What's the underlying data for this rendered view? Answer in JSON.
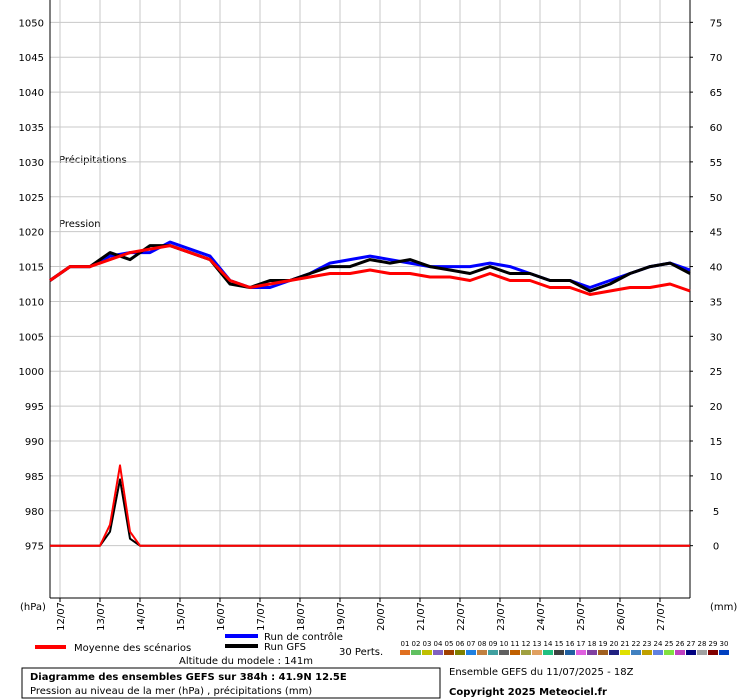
{
  "chart_data": {
    "type": "line",
    "annotations": [
      "Précipitations",
      "Pression"
    ],
    "ylabel": "(hPa)",
    "y2label": "(mm)",
    "x": [
      0,
      12,
      24,
      36,
      48,
      60,
      72,
      84,
      96,
      108,
      120,
      132,
      144,
      156,
      168,
      180,
      192,
      204,
      216,
      228,
      240,
      252,
      264,
      276,
      288,
      300,
      312,
      324,
      336,
      348,
      360,
      372,
      384
    ],
    "xlim": [
      0,
      384
    ],
    "xticks": [
      {
        "value": 6,
        "label": "12/07"
      },
      {
        "value": 30,
        "label": "13/07"
      },
      {
        "value": 54,
        "label": "14/07"
      },
      {
        "value": 78,
        "label": "15/07"
      },
      {
        "value": 102,
        "label": "16/07"
      },
      {
        "value": 126,
        "label": "17/07"
      },
      {
        "value": 150,
        "label": "18/07"
      },
      {
        "value": 174,
        "label": "19/07"
      },
      {
        "value": 198,
        "label": "20/07"
      },
      {
        "value": 222,
        "label": "21/07"
      },
      {
        "value": 246,
        "label": "22/07"
      },
      {
        "value": 270,
        "label": "23/07"
      },
      {
        "value": 294,
        "label": "24/07"
      },
      {
        "value": 318,
        "label": "25/07"
      },
      {
        "value": 342,
        "label": "26/07"
      },
      {
        "value": 366,
        "label": "27/07"
      }
    ],
    "ylim": [
      967.5,
      1053.2
    ],
    "yticks": [
      975,
      980,
      985,
      990,
      995,
      1000,
      1005,
      1010,
      1015,
      1020,
      1025,
      1030,
      1035,
      1040,
      1045,
      1050
    ],
    "y2lim": [
      -7.5,
      78.2
    ],
    "y2ticks": [
      0,
      5,
      10,
      15,
      20,
      25,
      30,
      35,
      40,
      45,
      50,
      55,
      60,
      65,
      70,
      75
    ],
    "grid": true,
    "series": [
      {
        "name": "Run de contrôle",
        "color": "#0000ff",
        "values": [
          1013,
          1015,
          1015,
          1016.5,
          1017,
          1017,
          1018.5,
          1017.5,
          1016.5,
          1013,
          1012,
          1012,
          1013,
          1014,
          1015.5,
          1016,
          1016.5,
          1016,
          1015.5,
          1015,
          1015,
          1015,
          1015.5,
          1015,
          1014,
          1013,
          1013,
          1012,
          1013,
          1014,
          1015,
          1015.5,
          1014.5
        ]
      },
      {
        "name": "Run GFS",
        "color": "#000000",
        "values": [
          1013,
          1015,
          1015,
          1017,
          1016,
          1018,
          1018,
          1017,
          1016,
          1012.5,
          1012,
          1013,
          1013,
          1014,
          1015,
          1015,
          1016,
          1015.5,
          1016,
          1015,
          1014.5,
          1014,
          1015,
          1014,
          1014,
          1013,
          1013,
          1011.5,
          1012.5,
          1014,
          1015,
          1015.5,
          1014
        ]
      },
      {
        "name": "Moyenne des scénarios",
        "color": "#ff0000",
        "values": [
          1013,
          1015,
          1015,
          1016,
          1017,
          1017.5,
          1018,
          1017,
          1016,
          1013,
          1012,
          1012.5,
          1013,
          1013.5,
          1014,
          1014,
          1014.5,
          1014,
          1014,
          1013.5,
          1013.5,
          1013,
          1014,
          1013,
          1013,
          1012,
          1012,
          1011,
          1011.5,
          1012,
          1012,
          1012.5,
          1011.5
        ]
      },
      {
        "axis": "y2",
        "color": "#000000",
        "x": [
          0,
          30,
          36,
          42,
          48,
          54,
          384
        ],
        "values": [
          0,
          0,
          2,
          9.5,
          1,
          0,
          0
        ]
      },
      {
        "axis": "y2",
        "color": "#ff0000",
        "x": [
          0,
          30,
          36,
          42,
          48,
          54,
          384
        ],
        "values": [
          0,
          0,
          3,
          11.5,
          2,
          0,
          0
        ]
      }
    ],
    "perturbations_label": "30 Perts.",
    "perturbations": [
      {
        "label": "01",
        "color": "#e07020"
      },
      {
        "label": "02",
        "color": "#60c060"
      },
      {
        "label": "03",
        "color": "#c0c000"
      },
      {
        "label": "04",
        "color": "#8060c0"
      },
      {
        "label": "05",
        "color": "#a04000"
      },
      {
        "label": "06",
        "color": "#808000"
      },
      {
        "label": "07",
        "color": "#2080e0"
      },
      {
        "label": "08",
        "color": "#c08040"
      },
      {
        "label": "09",
        "color": "#40a0a0"
      },
      {
        "label": "10",
        "color": "#606060"
      },
      {
        "label": "11",
        "color": "#c06000"
      },
      {
        "label": "12",
        "color": "#a0a040"
      },
      {
        "label": "13",
        "color": "#e0a060"
      },
      {
        "label": "14",
        "color": "#20c080"
      },
      {
        "label": "15",
        "color": "#404040"
      },
      {
        "label": "16",
        "color": "#2060a0"
      },
      {
        "label": "17",
        "color": "#e060e0"
      },
      {
        "label": "18",
        "color": "#8040a0"
      },
      {
        "label": "19",
        "color": "#a06020"
      },
      {
        "label": "20",
        "color": "#202080"
      },
      {
        "label": "21",
        "color": "#e0e000"
      },
      {
        "label": "22",
        "color": "#4080c0"
      },
      {
        "label": "23",
        "color": "#c0a000"
      },
      {
        "label": "24",
        "color": "#6080e0"
      },
      {
        "label": "25",
        "color": "#80e040"
      },
      {
        "label": "26",
        "color": "#c040c0"
      },
      {
        "label": "27",
        "color": "#000080"
      },
      {
        "label": "28",
        "color": "#a0a0a0"
      },
      {
        "label": "29",
        "color": "#800000"
      },
      {
        "label": "30",
        "color": "#0040c0"
      }
    ],
    "altitude": "Altitude du modele : 141m",
    "title": "Diagramme des ensembles GEFS sur 384h : 41.9N 12.5E",
    "subtitle": "Pression au niveau de la mer (hPa) , précipitations (mm)",
    "run_info": "Ensemble GEFS du 11/07/2025 - 18Z",
    "copyright": "Copyright 2025 Meteociel.fr"
  }
}
